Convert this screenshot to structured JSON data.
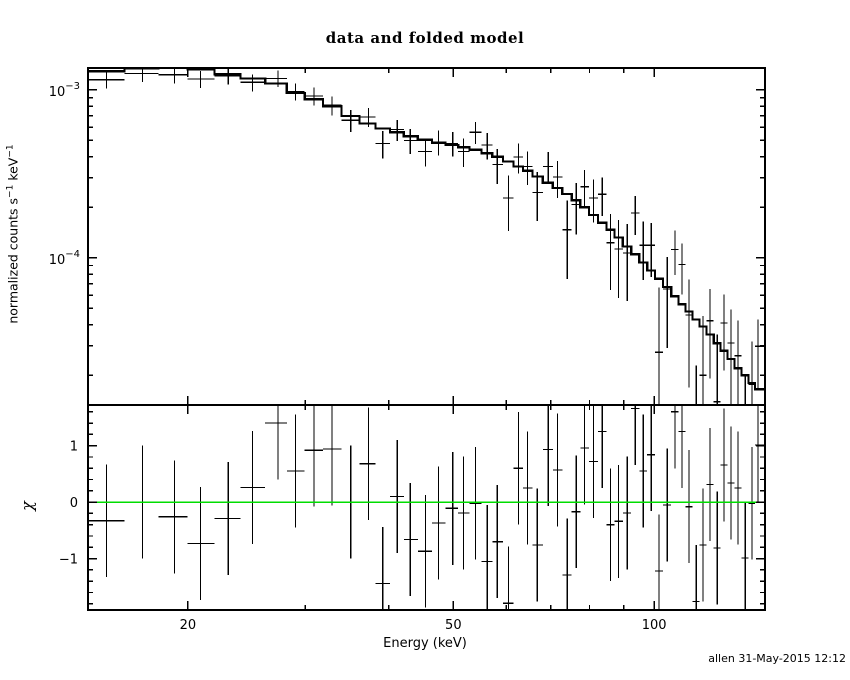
{
  "page": {
    "background": "#ffffff",
    "footer": "allen 31-May-2015 12:12"
  },
  "chart_data": [
    {
      "id": "spectrum-panel",
      "type": "scatter",
      "title": "data and folded model",
      "ylabel_text": "normalized counts s-1 keV-1",
      "ylabel_parts": [
        {
          "t": "normalized counts s"
        },
        {
          "t": "−1",
          "sup": true
        },
        {
          "t": " keV"
        },
        {
          "t": "−1",
          "sup": true
        }
      ],
      "xscale": "log",
      "yscale": "log",
      "xlim": [
        14.17,
        146.6
      ],
      "ylim": [
        1.33e-05,
        0.00135
      ],
      "x_ticks": {
        "major": [
          {
            "v": 20,
            "label": "20"
          },
          {
            "v": 50,
            "label": "50"
          },
          {
            "v": 100,
            "label": "100"
          }
        ],
        "minor": [
          30,
          40,
          60,
          70,
          80,
          90
        ]
      },
      "y_ticks": {
        "major": [
          {
            "v": 0.001,
            "base": "10",
            "exp": "−3"
          },
          {
            "v": 0.0001,
            "base": "10",
            "exp": "−4"
          }
        ],
        "minor_decades": [
          1e-05,
          0.0001
        ]
      },
      "x": [
        15.1,
        17.1,
        19.1,
        20.9,
        23.0,
        25.0,
        27.3,
        29.0,
        30.9,
        32.9,
        35.1,
        37.3,
        39.2,
        41.2,
        43.1,
        45.4,
        47.5,
        49.9,
        51.8,
        54.0,
        56.2,
        58.2,
        60.5,
        62.6,
        64.6,
        66.8,
        69.4,
        71.6,
        74.1,
        76.4,
        78.6,
        81.1,
        83.6,
        86.0,
        88.4,
        91.1,
        93.7,
        96.3,
        99.0,
        101.7,
        104.6,
        107.5,
        110.1,
        112.8,
        115.6,
        118.4,
        121.3,
        124.3,
        127.3,
        130.4,
        133.6,
        136.9,
        140.2,
        143.1
      ],
      "data": [
        0.00115,
        0.00125,
        0.00123,
        0.00116,
        0.00121,
        0.00111,
        0.00117,
        0.00098,
        0.00092,
        0.00081,
        0.00066,
        0.00069,
        0.00048,
        0.00058,
        0.0005,
        0.00043,
        0.00049,
        0.00048,
        0.00043,
        0.00056,
        0.00047,
        0.00036,
        0.000227,
        0.000398,
        0.00035,
        0.000245,
        0.00035,
        0.000303,
        0.000147,
        0.000208,
        0.000265,
        0.000227,
        0.000239,
        0.000123,
        0.000113,
        0.000107,
        0.000185,
        0.000119,
        0.000119,
        2.74e-05,
        6.52e-05,
        0.000112,
        9.14e-05,
        4.57e-05,
        -3.9e-06,
        2e-05,
        4.22e-05,
        1.39e-05,
        4.09e-05,
        3.11e-05,
        2.61e-05,
        4.95e-06,
        1.77e-05,
        2.98e-05
      ],
      "err": [
        0.000129,
        0.000134,
        0.000138,
        0.000132,
        0.000136,
        0.000129,
        0.000131,
        0.000115,
        0.000114,
        0.000104,
        9.8e-05,
        8.82e-05,
        8.85e-05,
        8.4e-05,
        8.48e-05,
        8.08e-05,
        8.25e-05,
        7.99e-05,
        8.19e-05,
        8.36e-05,
        8.4e-05,
        8.4e-05,
        8.25e-05,
        8.05e-05,
        7.92e-05,
        7.93e-05,
        7.56e-05,
        7.54e-05,
        7.2e-05,
        7.04e-05,
        6.8e-05,
        6.48e-05,
        6.16e-05,
        5.88e-05,
        5.54e-05,
        5.15e-05,
        4.83e-05,
        4.51e-05,
        4.2e-05,
        3.9e-05,
        3.62e-05,
        3.3e-05,
        3.07e-05,
        2.88e-05,
        2.67e-05,
        2.5e-05,
        2.31e-05,
        2.11e-05,
        1.96e-05,
        1.8e-05,
        1.63e-05,
        1.52e-05,
        1.4e-05,
        1.32e-05
      ],
      "model": [
        0.00129,
        0.00134,
        0.00135,
        0.00132,
        0.00124,
        0.00117,
        0.00109,
        0.00096,
        0.00088,
        0.0008,
        0.0007,
        0.00063,
        0.00059,
        0.00056,
        0.00053,
        0.000505,
        0.000485,
        0.00047,
        0.000455,
        0.00044,
        0.00042,
        0.0004,
        0.000375,
        0.00035,
        0.00033,
        0.000305,
        0.00028,
        0.00026,
        0.00024,
        0.00022,
        0.0002,
        0.00018,
        0.000162,
        0.000147,
        0.000132,
        0.000117,
        0.000105,
        9.4e-05,
        8.4e-05,
        7.5e-05,
        6.7e-05,
        5.9e-05,
        5.3e-05,
        4.8e-05,
        4.3e-05,
        3.9e-05,
        3.5e-05,
        3.1e-05,
        2.8e-05,
        2.5e-05,
        2.2e-05,
        2e-05,
        1.8e-05,
        1.65e-05
      ]
    },
    {
      "id": "residuals-panel",
      "type": "scatter",
      "xlabel": "Energy (keV)",
      "ylabel": "χ",
      "xscale": "log",
      "ylim": [
        -1.91,
        1.72
      ],
      "y_ticks": {
        "major": [
          {
            "v": 1,
            "label": "1"
          },
          {
            "v": 0,
            "label": "0"
          },
          {
            "v": -1,
            "label": "−1"
          }
        ],
        "minor_step": 0.2
      },
      "chi": [
        -0.33,
        0.0,
        -0.26,
        -0.73,
        -0.29,
        0.26,
        1.4,
        0.55,
        0.92,
        0.94,
        0.0,
        0.68,
        -1.44,
        0.1,
        -0.66,
        -0.87,
        -0.37,
        -0.11,
        -0.19,
        -0.02,
        -1.05,
        -0.7,
        -1.79,
        0.6,
        0.25,
        -0.76,
        0.93,
        0.57,
        -1.29,
        -0.17,
        0.96,
        0.72,
        1.25,
        -0.4,
        -0.34,
        -0.19,
        1.66,
        0.55,
        0.84,
        -1.22,
        -0.05,
        1.6,
        1.25,
        -0.08,
        -1.76,
        -0.76,
        0.31,
        -0.81,
        0.66,
        0.34,
        0.25,
        -0.99,
        -0.02,
        1.01
      ],
      "chi_err": 1.0
    }
  ],
  "colors": {
    "data": "#000000",
    "model": "#000000",
    "zero_line": "#00dd00",
    "frame": "#000000",
    "background": "#ffffff"
  }
}
